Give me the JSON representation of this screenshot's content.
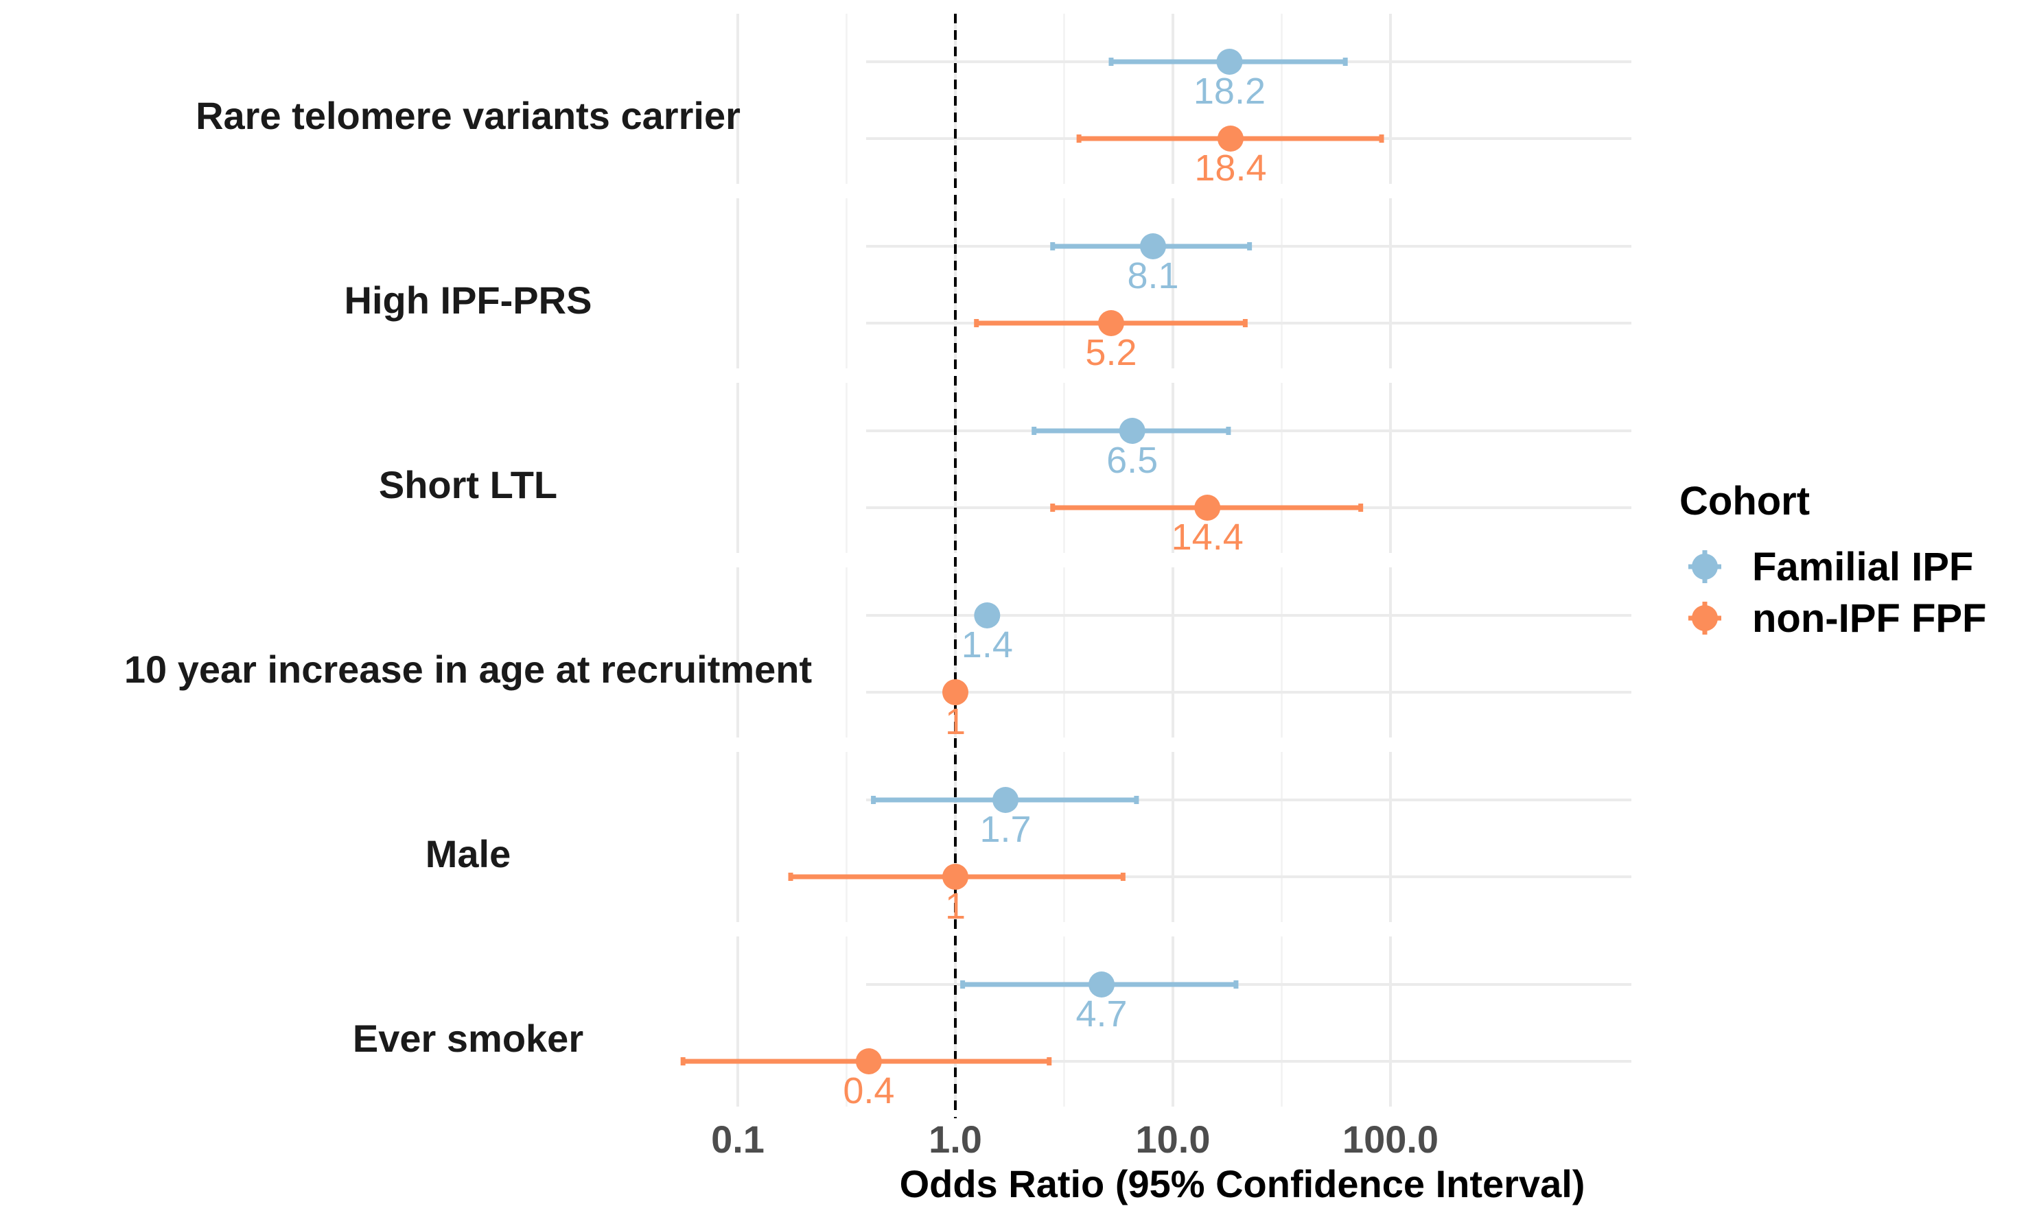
{
  "chart_data": {
    "type": "scatter",
    "subtype": "forest-plot",
    "xlabel": "Odds Ratio (95% Confidence Interval)",
    "x_scale": "log10",
    "xlim": [
      0.045,
      150
    ],
    "x_ticks": [
      {
        "value": 0.1,
        "label": "0.1"
      },
      {
        "value": 1,
        "label": "1.0"
      },
      {
        "value": 10,
        "label": "10.0"
      },
      {
        "value": 100,
        "label": "100.0"
      }
    ],
    "reference_line": 1,
    "grid": true,
    "legend": {
      "title": "Cohort",
      "position": "right",
      "entries": [
        {
          "name": "Familial IPF",
          "color": "#91bfdb"
        },
        {
          "name": "non-IPF FPF",
          "color": "#fc8d59"
        }
      ]
    },
    "rows": [
      {
        "label": "Rare telomere variants carrier",
        "estimates": [
          {
            "series": "Familial IPF",
            "or": 18.2,
            "lo": 5.2,
            "hi": 62,
            "text": "18.2"
          },
          {
            "series": "non-IPF FPF",
            "or": 18.4,
            "lo": 3.7,
            "hi": 91,
            "text": "18.4"
          }
        ]
      },
      {
        "label": "High IPF-PRS",
        "estimates": [
          {
            "series": "Familial IPF",
            "or": 8.1,
            "lo": 2.8,
            "hi": 22.5,
            "text": "8.1"
          },
          {
            "series": "non-IPF FPF",
            "or": 5.2,
            "lo": 1.25,
            "hi": 21.5,
            "text": "5.2"
          }
        ]
      },
      {
        "label": "Short LTL",
        "estimates": [
          {
            "series": "Familial IPF",
            "or": 6.5,
            "lo": 2.3,
            "hi": 18,
            "text": "6.5"
          },
          {
            "series": "non-IPF FPF",
            "or": 14.4,
            "lo": 2.8,
            "hi": 73,
            "text": "14.4"
          }
        ]
      },
      {
        "label": "10 year increase in age at recruitment",
        "estimates": [
          {
            "series": "Familial IPF",
            "or": 1.4,
            "lo": 1.4,
            "hi": 1.4,
            "text": "1.4"
          },
          {
            "series": "non-IPF FPF",
            "or": 1.0,
            "lo": 1.0,
            "hi": 1.0,
            "text": "1"
          }
        ]
      },
      {
        "label": "Male",
        "estimates": [
          {
            "series": "Familial IPF",
            "or": 1.7,
            "lo": 0.42,
            "hi": 6.8,
            "text": "1.7"
          },
          {
            "series": "non-IPF FPF",
            "or": 1.0,
            "lo": 0.175,
            "hi": 5.9,
            "text": "1"
          }
        ]
      },
      {
        "label": "Ever smoker",
        "estimates": [
          {
            "series": "Familial IPF",
            "or": 4.7,
            "lo": 1.08,
            "hi": 19.5,
            "text": "4.7"
          },
          {
            "series": "non-IPF FPF",
            "or": 0.4,
            "lo": 0.056,
            "hi": 2.7,
            "text": "0.4"
          }
        ]
      }
    ]
  }
}
